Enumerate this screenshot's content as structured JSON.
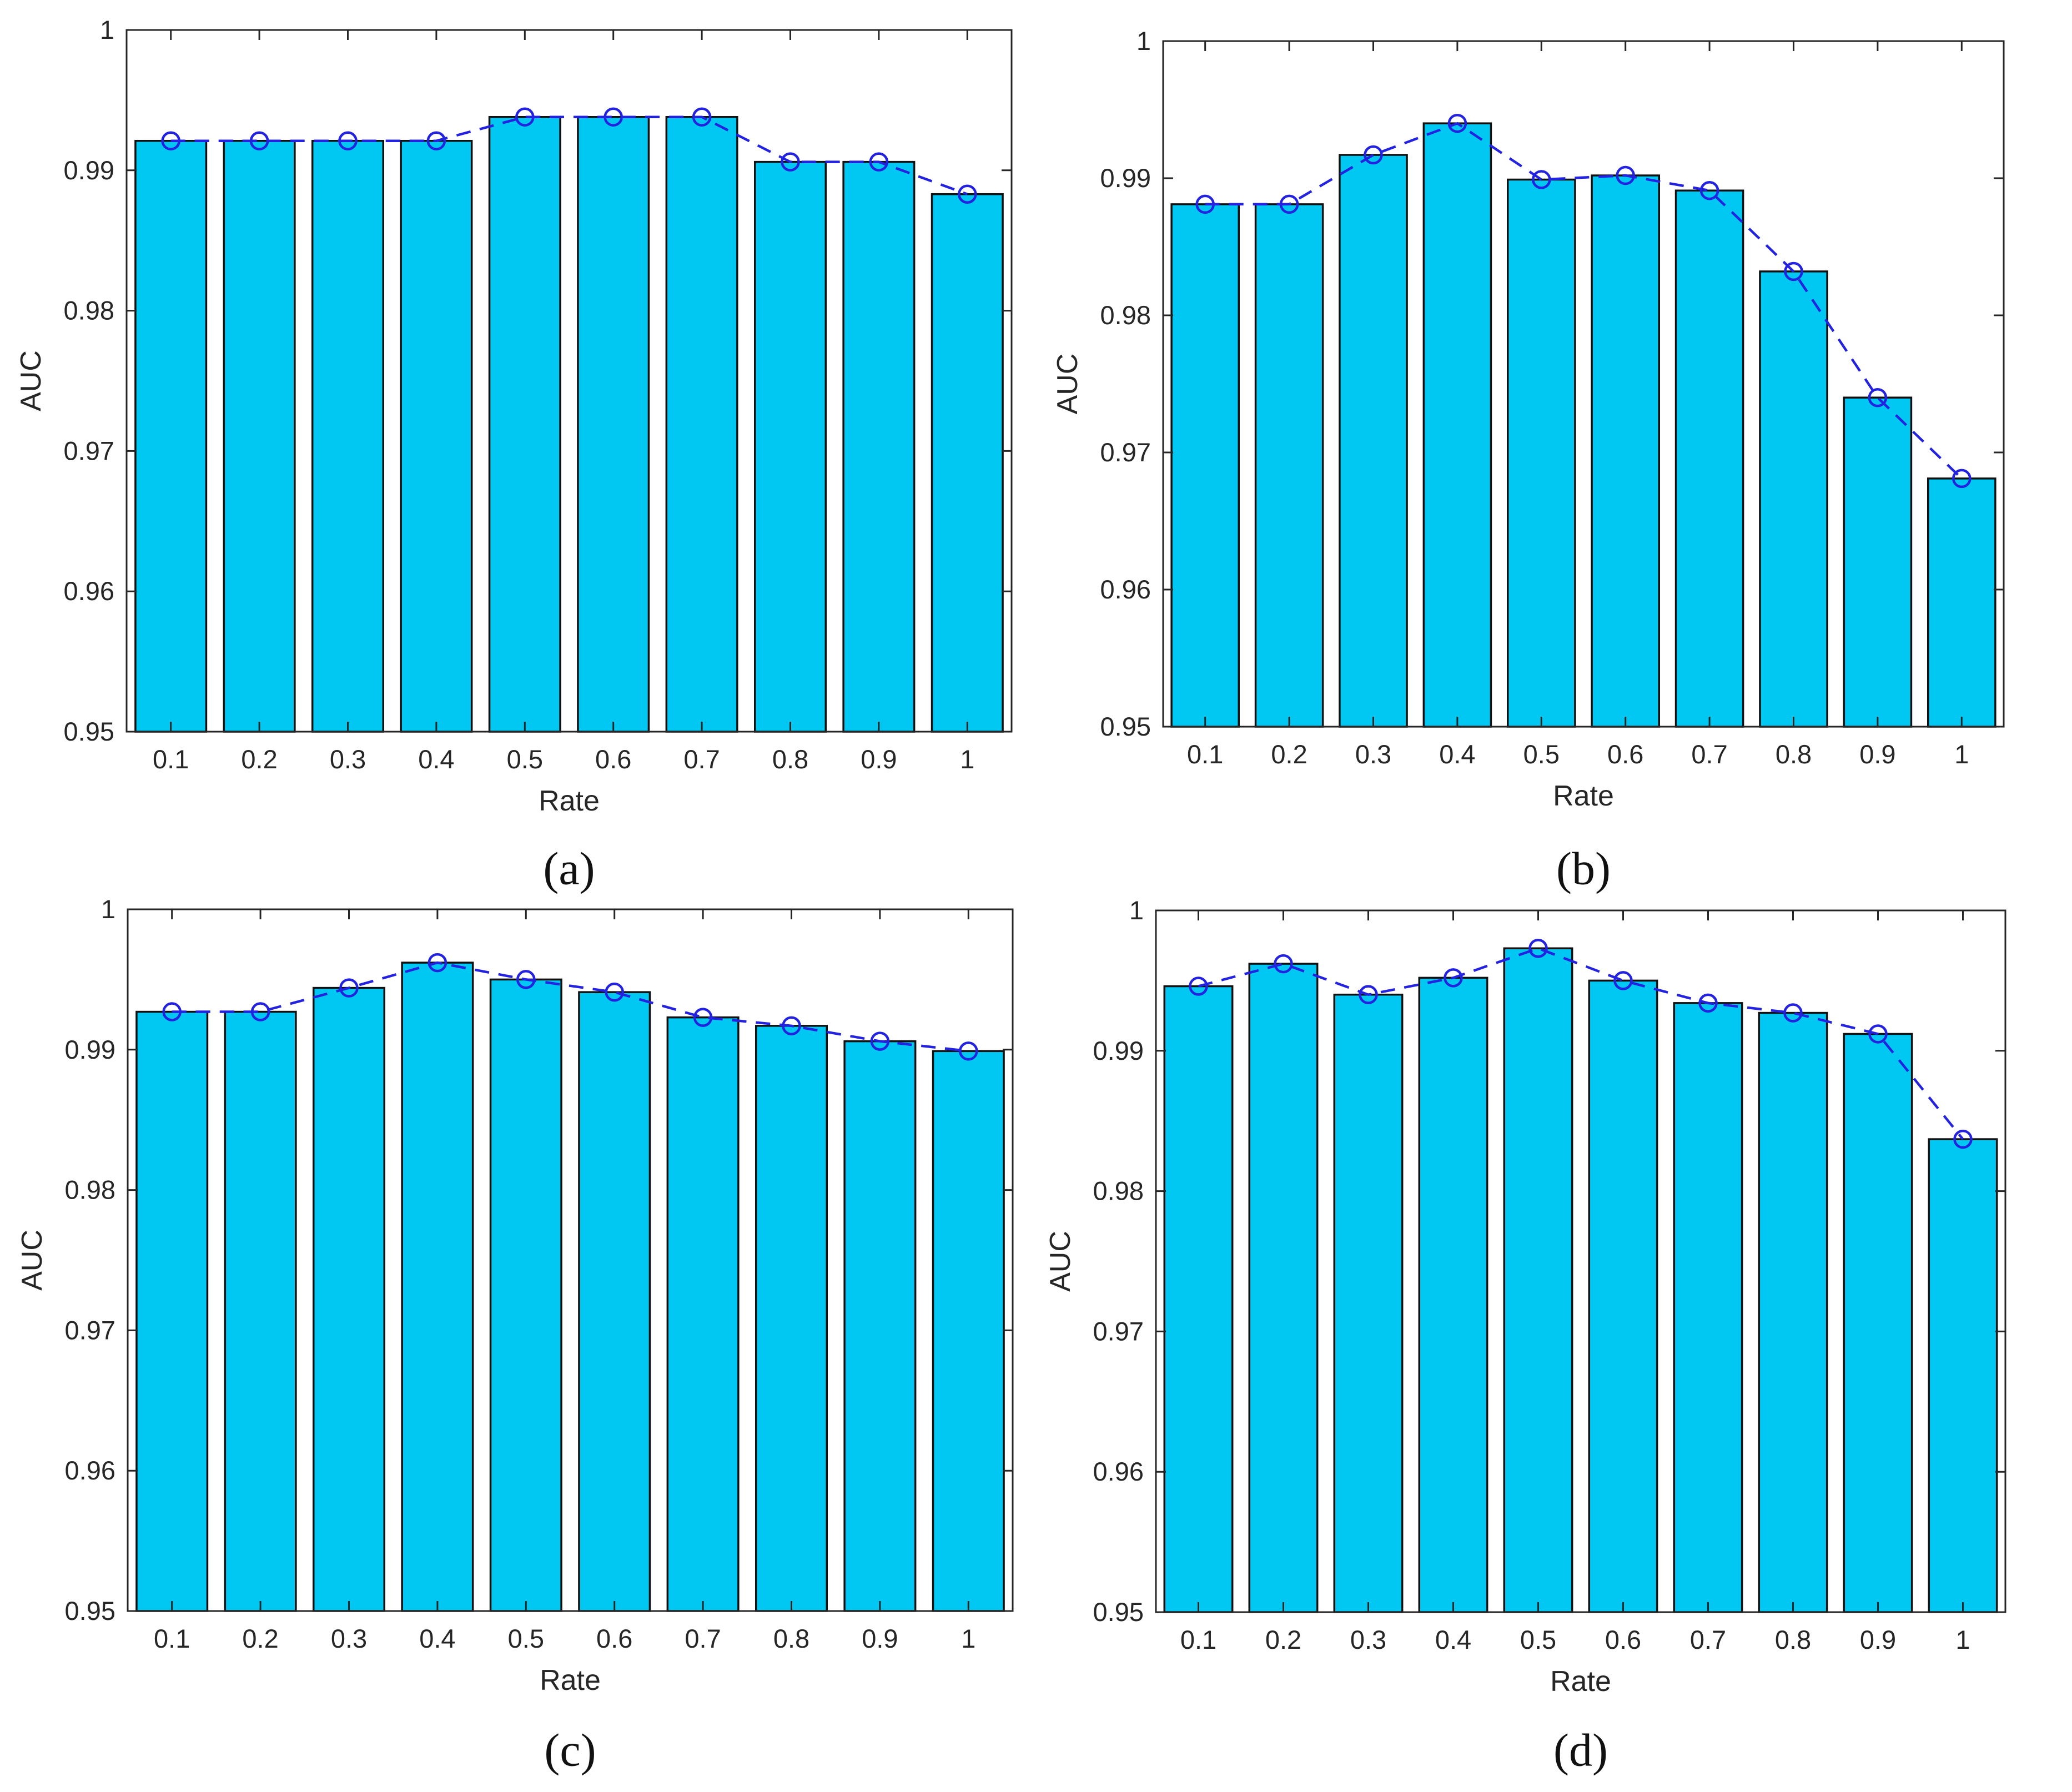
{
  "figure": {
    "background": "#ffffff",
    "description": "Four MATLAB-style bar charts of AUC versus Rate with dashed trend line and circle markers"
  },
  "style": {
    "bar_fill": "#00c8f2",
    "bar_edge": "#111111",
    "axis_color": "#262626",
    "text_color": "#262626",
    "line_color": "#2222e0",
    "marker_color": "#2222e0"
  },
  "chart_data": [
    {
      "id": "a",
      "label": "(a)",
      "type": "bar",
      "overlay": "dashed-line-with-circle-markers",
      "xlabel": "Rate",
      "ylabel": "AUC",
      "xlim": [
        0.05,
        1.05
      ],
      "ylim": [
        0.95,
        1
      ],
      "grid": false,
      "legend": null,
      "yticks": [
        1,
        0.99,
        0.98,
        0.97,
        0.96,
        0.95
      ],
      "ytick_labels": [
        "1",
        "0.99",
        "0.98",
        "0.97",
        "0.96",
        "0.95"
      ],
      "categories": [
        "0.1",
        "0.2",
        "0.3",
        "0.4",
        "0.5",
        "0.6",
        "0.7",
        "0.8",
        "0.9",
        "1"
      ],
      "values": [
        0.9921,
        0.9921,
        0.9921,
        0.9921,
        0.9938,
        0.9938,
        0.9938,
        0.9906,
        0.9906,
        0.9883
      ]
    },
    {
      "id": "b",
      "label": "(b)",
      "type": "bar",
      "overlay": "dashed-line-with-circle-markers",
      "xlabel": "Rate",
      "ylabel": "AUC",
      "xlim": [
        0.05,
        1.05
      ],
      "ylim": [
        0.95,
        1
      ],
      "grid": false,
      "legend": null,
      "yticks": [
        1,
        0.99,
        0.98,
        0.97,
        0.96,
        0.95
      ],
      "ytick_labels": [
        "1",
        "0.99",
        "0.98",
        "0.97",
        "0.96",
        "0.95"
      ],
      "categories": [
        "0.1",
        "0.2",
        "0.3",
        "0.4",
        "0.5",
        "0.6",
        "0.7",
        "0.8",
        "0.9",
        "1"
      ],
      "values": [
        0.9881,
        0.9881,
        0.9917,
        0.994,
        0.9899,
        0.9902,
        0.9891,
        0.9832,
        0.974,
        0.9681
      ]
    },
    {
      "id": "c",
      "label": "(c)",
      "type": "bar",
      "overlay": "dashed-line-with-circle-markers",
      "xlabel": "Rate",
      "ylabel": "AUC",
      "xlim": [
        0.05,
        1.05
      ],
      "ylim": [
        0.95,
        1
      ],
      "grid": false,
      "legend": null,
      "yticks": [
        1,
        0.99,
        0.98,
        0.97,
        0.96,
        0.95
      ],
      "ytick_labels": [
        "1",
        "0.99",
        "0.98",
        "0.97",
        "0.96",
        "0.95"
      ],
      "categories": [
        "0.1",
        "0.2",
        "0.3",
        "0.4",
        "0.5",
        "0.6",
        "0.7",
        "0.8",
        "0.9",
        "1"
      ],
      "values": [
        0.9927,
        0.9927,
        0.9944,
        0.9962,
        0.995,
        0.9941,
        0.9923,
        0.9917,
        0.9906,
        0.9899
      ]
    },
    {
      "id": "d",
      "label": "(d)",
      "type": "bar",
      "overlay": "dashed-line-with-circle-markers",
      "xlabel": "Rate",
      "ylabel": "AUC",
      "xlim": [
        0.05,
        1.05
      ],
      "ylim": [
        0.95,
        1
      ],
      "grid": false,
      "legend": null,
      "yticks": [
        1,
        0.99,
        0.98,
        0.97,
        0.96,
        0.95
      ],
      "ytick_labels": [
        "1",
        "0.99",
        "0.98",
        "0.97",
        "0.96",
        "0.95"
      ],
      "categories": [
        "0.1",
        "0.2",
        "0.3",
        "0.4",
        "0.5",
        "0.6",
        "0.7",
        "0.8",
        "0.9",
        "1"
      ],
      "values": [
        0.9946,
        0.9962,
        0.994,
        0.9952,
        0.9973,
        0.995,
        0.9934,
        0.9927,
        0.9912,
        0.9837
      ]
    }
  ]
}
